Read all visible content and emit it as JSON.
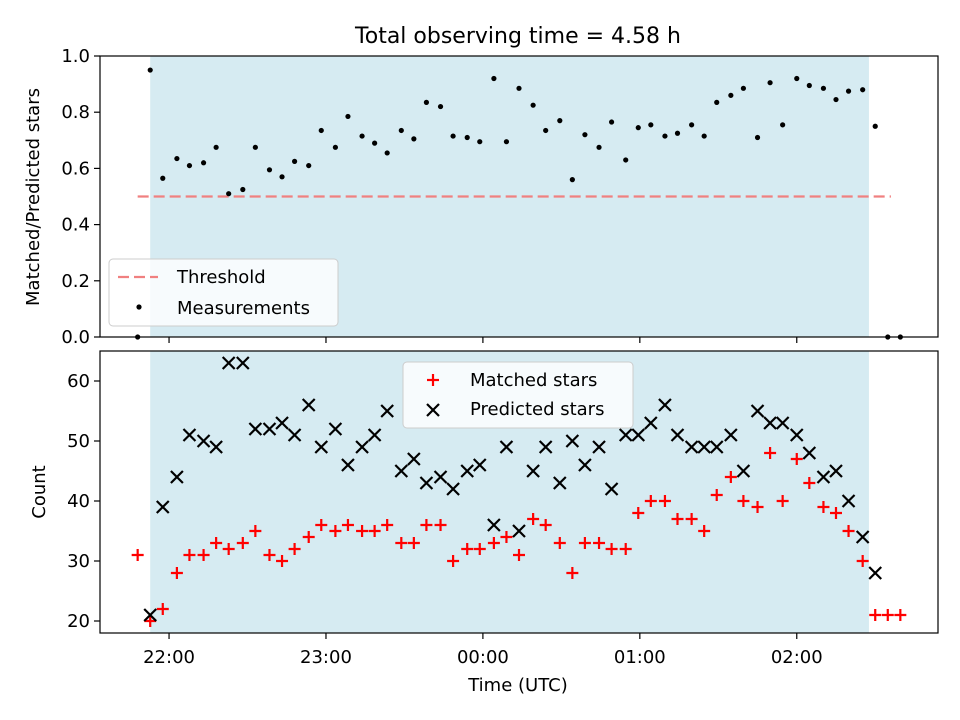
{
  "title": "Total observing time = 4.58 h",
  "xlabel": "Time (UTC)",
  "x_ticks": [
    "22:00",
    "23:00",
    "00:00",
    "01:00",
    "02:00"
  ],
  "colors": {
    "shade": "#add8e6",
    "threshold": "#f08080",
    "matched": "#ff0000",
    "predicted": "#000000",
    "measurement": "#000000"
  },
  "chart_data": [
    {
      "type": "scatter",
      "ylabel": "Matched/Predicted stars",
      "ylim": [
        0,
        1.0
      ],
      "y_ticks": [
        "0.0",
        "0.2",
        "0.4",
        "0.6",
        "0.8",
        "1.0"
      ],
      "x_unit": "hours since 22:00 UTC",
      "xlim": [
        -0.44,
        4.9
      ],
      "observing_window": [
        -0.12,
        4.46
      ],
      "threshold": {
        "name": "Threshold",
        "value": 0.5,
        "x_range": [
          -0.2,
          4.6
        ]
      },
      "legend": "lower-left",
      "series": [
        {
          "name": "Measurements",
          "x": [
            -0.2,
            -0.12,
            -0.04,
            0.05,
            0.13,
            0.22,
            0.3,
            0.38,
            0.47,
            0.55,
            0.64,
            0.72,
            0.8,
            0.89,
            0.97,
            1.06,
            1.14,
            1.23,
            1.31,
            1.39,
            1.48,
            1.56,
            1.64,
            1.73,
            1.81,
            1.9,
            1.98,
            2.07,
            2.15,
            2.23,
            2.32,
            2.4,
            2.49,
            2.57,
            2.65,
            2.74,
            2.82,
            2.91,
            2.99,
            3.07,
            3.16,
            3.24,
            3.33,
            3.41,
            3.49,
            3.58,
            3.66,
            3.75,
            3.83,
            3.91,
            4.0,
            4.08,
            4.17,
            4.25,
            4.33,
            4.42,
            4.5,
            4.58,
            4.66
          ],
          "y": [
            0.0,
            0.95,
            0.565,
            0.635,
            0.61,
            0.62,
            0.675,
            0.51,
            0.525,
            0.675,
            0.595,
            0.57,
            0.625,
            0.61,
            0.735,
            0.675,
            0.785,
            0.715,
            0.69,
            0.655,
            0.735,
            0.705,
            0.835,
            0.82,
            0.715,
            0.71,
            0.695,
            0.92,
            0.695,
            0.885,
            0.825,
            0.735,
            0.77,
            0.56,
            0.72,
            0.675,
            0.765,
            0.63,
            0.745,
            0.755,
            0.715,
            0.725,
            0.755,
            0.715,
            0.835,
            0.86,
            0.885,
            0.71,
            0.905,
            0.755,
            0.92,
            0.895,
            0.885,
            0.845,
            0.875,
            0.88,
            0.75,
            0.0,
            0.0
          ]
        }
      ]
    },
    {
      "type": "scatter",
      "ylabel": "Count",
      "ylim": [
        18,
        65
      ],
      "y_ticks": [
        "20",
        "30",
        "40",
        "50",
        "60"
      ],
      "x_unit": "hours since 22:00 UTC",
      "xlim": [
        -0.44,
        4.9
      ],
      "observing_window": [
        -0.12,
        4.46
      ],
      "legend": "top-center",
      "series": [
        {
          "name": "Matched stars",
          "x": [
            -0.2,
            -0.12,
            -0.04,
            0.05,
            0.13,
            0.22,
            0.3,
            0.38,
            0.47,
            0.55,
            0.64,
            0.72,
            0.8,
            0.89,
            0.97,
            1.06,
            1.14,
            1.23,
            1.31,
            1.39,
            1.48,
            1.56,
            1.64,
            1.73,
            1.81,
            1.9,
            1.98,
            2.07,
            2.15,
            2.23,
            2.32,
            2.4,
            2.49,
            2.57,
            2.65,
            2.74,
            2.82,
            2.91,
            2.99,
            3.07,
            3.16,
            3.24,
            3.33,
            3.41,
            3.49,
            3.58,
            3.66,
            3.75,
            3.83,
            3.91,
            4.0,
            4.08,
            4.17,
            4.25,
            4.33,
            4.42,
            4.5,
            4.58,
            4.66
          ],
          "y": [
            31,
            20,
            22,
            28,
            31,
            31,
            33,
            32,
            33,
            35,
            31,
            30,
            32,
            34,
            36,
            35,
            36,
            35,
            35,
            36,
            33,
            33,
            36,
            36,
            30,
            32,
            32,
            33,
            34,
            31,
            37,
            36,
            33,
            28,
            33,
            33,
            32,
            32,
            38,
            40,
            40,
            37,
            37,
            35,
            41,
            44,
            40,
            39,
            48,
            40,
            47,
            43,
            39,
            38,
            35,
            30,
            21,
            21,
            21
          ]
        },
        {
          "name": "Predicted stars",
          "x": [
            -0.12,
            -0.04,
            0.05,
            0.13,
            0.22,
            0.3,
            0.38,
            0.47,
            0.55,
            0.64,
            0.72,
            0.8,
            0.89,
            0.97,
            1.06,
            1.14,
            1.23,
            1.31,
            1.39,
            1.48,
            1.56,
            1.64,
            1.73,
            1.81,
            1.9,
            1.98,
            2.07,
            2.15,
            2.23,
            2.32,
            2.4,
            2.49,
            2.57,
            2.65,
            2.74,
            2.82,
            2.91,
            2.99,
            3.07,
            3.16,
            3.24,
            3.33,
            3.41,
            3.49,
            3.58,
            3.66,
            3.75,
            3.83,
            3.91,
            4.0,
            4.08,
            4.17,
            4.25,
            4.33,
            4.42,
            4.5
          ],
          "y": [
            21,
            39,
            44,
            51,
            50,
            49,
            63,
            63,
            52,
            52,
            53,
            51,
            56,
            49,
            52,
            46,
            49,
            51,
            55,
            45,
            47,
            43,
            44,
            42,
            45,
            46,
            36,
            49,
            35,
            45,
            49,
            43,
            50,
            46,
            49,
            42,
            51,
            51,
            53,
            56,
            51,
            49,
            49,
            49,
            51,
            45,
            55,
            53,
            53,
            51,
            48,
            44,
            45,
            40,
            34,
            28
          ]
        }
      ]
    }
  ]
}
